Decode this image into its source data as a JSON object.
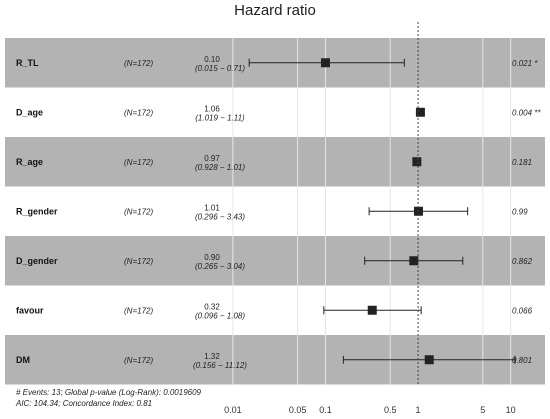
{
  "chart_data": {
    "type": "forest",
    "title": "Hazard ratio",
    "scale": "log",
    "xlim": [
      0.005,
      12
    ],
    "ticks": [
      0.01,
      0.05,
      0.1,
      0.5,
      1,
      5,
      10
    ],
    "tick_labels": [
      "0.01",
      "0.05",
      "0.1",
      "0.5",
      "1",
      "5",
      "10"
    ],
    "reference_line": 1,
    "rows": [
      {
        "variable": "R_TL",
        "n": "(N=172)",
        "hr": 0.1,
        "hr_label": "0.10",
        "lower": 0.015,
        "upper": 0.71,
        "ci_label": "(0.015 − 0.71)",
        "p": "0.021 *",
        "shaded": true
      },
      {
        "variable": "D_age",
        "n": "(N=172)",
        "hr": 1.06,
        "hr_label": "1.06",
        "lower": 1.019,
        "upper": 1.11,
        "ci_label": "(1.019 − 1.11)",
        "p": "0.004 **",
        "shaded": false
      },
      {
        "variable": "R_age",
        "n": "(N=172)",
        "hr": 0.97,
        "hr_label": "0.97",
        "lower": 0.928,
        "upper": 1.01,
        "ci_label": "(0.928 − 1.01)",
        "p": "0.181",
        "shaded": true
      },
      {
        "variable": "R_gender",
        "n": "(N=172)",
        "hr": 1.01,
        "hr_label": "1.01",
        "lower": 0.296,
        "upper": 3.43,
        "ci_label": "(0.296 − 3.43)",
        "p": "0.99",
        "shaded": false
      },
      {
        "variable": "D_gender",
        "n": "(N=172)",
        "hr": 0.9,
        "hr_label": "0.90",
        "lower": 0.265,
        "upper": 3.04,
        "ci_label": "(0.265 − 3.04)",
        "p": "0.862",
        "shaded": true
      },
      {
        "variable": "favour",
        "n": "(N=172)",
        "hr": 0.32,
        "hr_label": "0.32",
        "lower": 0.096,
        "upper": 1.08,
        "ci_label": "(0.096 − 1.08)",
        "p": "0.066",
        "shaded": false
      },
      {
        "variable": "DM",
        "n": "(N=172)",
        "hr": 1.32,
        "hr_label": "1.32",
        "lower": 0.156,
        "upper": 11.12,
        "ci_label": "(0.156 − 11.12)",
        "p": "0.801",
        "shaded": true
      }
    ],
    "footnote_1": "# Events: 13; Global p-value (Log-Rank): 0.0019609",
    "footnote_2": "AIC: 104.34; Concordance Index: 0.81",
    "colors": {
      "shaded_row": "#b3b3b3",
      "plain_row": "#ffffff",
      "marker": "#222222",
      "reference_line": "#444444",
      "grid": "#e6e6e6"
    }
  }
}
